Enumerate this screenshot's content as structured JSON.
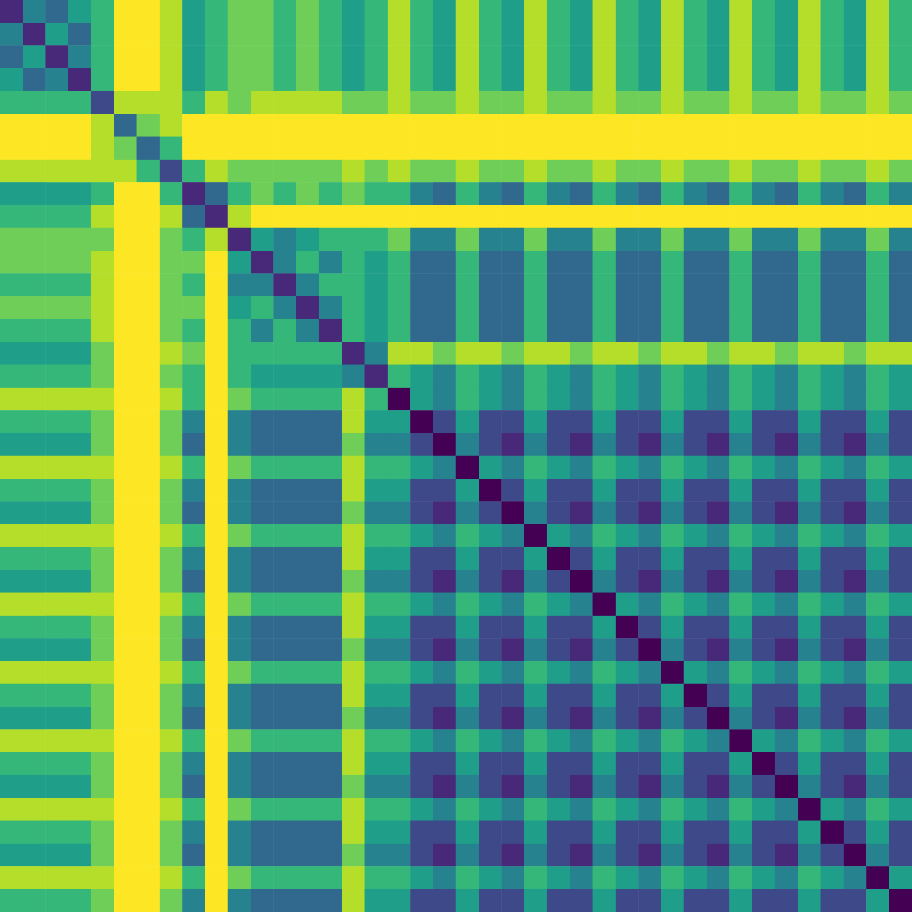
{
  "chart_data": {
    "type": "heatmap",
    "tick_labels": false,
    "color_range": [
      0,
      9
    ],
    "cells": [
      [
        1,
        4,
        3,
        5,
        6,
        9,
        9,
        8,
        5,
        6,
        7,
        7,
        6,
        7,
        6,
        5,
        6,
        8,
        6,
        5,
        8,
        6,
        5,
        8,
        6,
        5,
        8,
        6,
        5,
        8,
        6,
        5,
        8,
        6,
        5,
        8,
        6,
        5,
        8,
        6
      ],
      [
        4,
        1,
        5,
        3,
        6,
        9,
        9,
        8,
        5,
        6,
        7,
        7,
        6,
        7,
        6,
        5,
        6,
        8,
        6,
        5,
        8,
        6,
        5,
        8,
        6,
        5,
        8,
        6,
        5,
        8,
        6,
        5,
        8,
        6,
        5,
        8,
        6,
        5,
        8,
        6
      ],
      [
        3,
        5,
        1,
        4,
        6,
        9,
        9,
        8,
        5,
        6,
        7,
        7,
        6,
        7,
        6,
        5,
        6,
        8,
        6,
        5,
        8,
        6,
        5,
        8,
        6,
        5,
        8,
        6,
        5,
        8,
        6,
        5,
        8,
        6,
        5,
        8,
        6,
        5,
        8,
        6
      ],
      [
        5,
        3,
        4,
        1,
        6,
        9,
        9,
        8,
        5,
        6,
        7,
        7,
        6,
        7,
        6,
        5,
        6,
        8,
        6,
        5,
        8,
        6,
        5,
        8,
        6,
        5,
        8,
        6,
        5,
        8,
        6,
        5,
        8,
        6,
        5,
        8,
        6,
        5,
        8,
        6
      ],
      [
        6,
        6,
        6,
        6,
        2,
        8,
        8,
        8,
        6,
        8,
        7,
        8,
        8,
        8,
        8,
        7,
        7,
        8,
        7,
        7,
        8,
        7,
        7,
        8,
        7,
        7,
        8,
        7,
        7,
        8,
        7,
        7,
        8,
        7,
        7,
        8,
        7,
        7,
        8,
        7
      ],
      [
        9,
        9,
        9,
        9,
        8,
        3,
        7,
        8,
        9,
        9,
        9,
        9,
        9,
        9,
        9,
        9,
        9,
        9,
        9,
        9,
        9,
        9,
        9,
        9,
        9,
        9,
        9,
        9,
        9,
        9,
        9,
        9,
        9,
        9,
        9,
        9,
        9,
        9,
        9,
        9
      ],
      [
        9,
        9,
        9,
        9,
        8,
        7,
        3,
        6,
        9,
        9,
        9,
        9,
        9,
        9,
        9,
        9,
        9,
        9,
        9,
        9,
        9,
        9,
        9,
        9,
        9,
        9,
        9,
        9,
        9,
        9,
        9,
        9,
        9,
        9,
        9,
        9,
        9,
        9,
        9,
        9
      ],
      [
        8,
        8,
        8,
        8,
        8,
        8,
        6,
        2,
        6,
        8,
        7,
        7,
        7,
        7,
        7,
        8,
        7,
        8,
        7,
        7,
        8,
        7,
        7,
        8,
        7,
        7,
        8,
        7,
        7,
        8,
        7,
        7,
        8,
        7,
        7,
        8,
        7,
        7,
        8,
        7
      ],
      [
        5,
        5,
        5,
        5,
        6,
        9,
        9,
        6,
        1,
        3,
        6,
        7,
        6,
        7,
        6,
        7,
        6,
        6,
        4,
        3,
        6,
        4,
        3,
        6,
        4,
        3,
        6,
        4,
        3,
        6,
        4,
        3,
        6,
        4,
        3,
        6,
        4,
        3,
        6,
        4
      ],
      [
        6,
        6,
        6,
        6,
        8,
        9,
        9,
        8,
        3,
        1,
        8,
        9,
        9,
        9,
        9,
        9,
        9,
        9,
        9,
        9,
        9,
        9,
        9,
        9,
        9,
        9,
        9,
        9,
        9,
        9,
        9,
        9,
        9,
        9,
        9,
        9,
        9,
        9,
        9,
        9
      ],
      [
        7,
        7,
        7,
        7,
        7,
        9,
        9,
        7,
        6,
        8,
        1,
        5,
        4,
        5,
        6,
        6,
        6,
        7,
        4,
        4,
        7,
        4,
        4,
        7,
        4,
        4,
        7,
        4,
        4,
        7,
        4,
        4,
        7,
        4,
        4,
        7,
        4,
        4,
        7,
        4
      ],
      [
        7,
        7,
        7,
        7,
        8,
        9,
        9,
        7,
        7,
        9,
        5,
        1,
        4,
        6,
        4,
        6,
        5,
        6,
        3,
        3,
        6,
        3,
        3,
        6,
        3,
        3,
        6,
        3,
        3,
        6,
        3,
        3,
        6,
        3,
        3,
        6,
        3,
        3,
        6,
        3
      ],
      [
        6,
        6,
        6,
        6,
        8,
        9,
        9,
        7,
        6,
        9,
        4,
        4,
        1,
        4,
        6,
        6,
        5,
        6,
        3,
        3,
        6,
        3,
        3,
        6,
        3,
        3,
        6,
        3,
        3,
        6,
        3,
        3,
        6,
        3,
        3,
        6,
        3,
        3,
        6,
        3
      ],
      [
        7,
        7,
        7,
        7,
        8,
        9,
        9,
        7,
        7,
        9,
        5,
        6,
        4,
        1,
        4,
        6,
        5,
        6,
        3,
        3,
        6,
        3,
        3,
        6,
        3,
        3,
        6,
        3,
        3,
        6,
        3,
        3,
        6,
        3,
        3,
        6,
        3,
        3,
        6,
        3
      ],
      [
        6,
        6,
        6,
        6,
        8,
        9,
        9,
        7,
        6,
        9,
        6,
        4,
        6,
        4,
        1,
        6,
        5,
        6,
        3,
        3,
        6,
        3,
        3,
        6,
        3,
        3,
        6,
        3,
        3,
        6,
        3,
        3,
        6,
        3,
        3,
        6,
        3,
        3,
        6,
        3
      ],
      [
        5,
        5,
        5,
        5,
        7,
        9,
        9,
        8,
        7,
        9,
        6,
        6,
        6,
        6,
        6,
        1,
        4,
        8,
        8,
        7,
        8,
        8,
        7,
        8,
        8,
        7,
        8,
        8,
        7,
        8,
        8,
        7,
        8,
        8,
        7,
        8,
        8,
        7,
        8,
        8
      ],
      [
        6,
        6,
        6,
        6,
        7,
        9,
        9,
        7,
        6,
        9,
        6,
        5,
        5,
        5,
        5,
        4,
        1,
        6,
        5,
        4,
        6,
        5,
        4,
        6,
        5,
        4,
        6,
        5,
        4,
        6,
        5,
        4,
        6,
        5,
        4,
        6,
        5,
        4,
        6,
        5
      ],
      [
        8,
        8,
        8,
        8,
        8,
        9,
        9,
        8,
        6,
        9,
        7,
        6,
        6,
        6,
        6,
        8,
        6,
        0,
        5,
        4,
        6,
        5,
        4,
        6,
        5,
        4,
        6,
        5,
        4,
        6,
        5,
        4,
        6,
        5,
        4,
        6,
        5,
        4,
        6,
        5
      ],
      [
        6,
        6,
        6,
        6,
        7,
        9,
        9,
        7,
        4,
        9,
        4,
        3,
        3,
        3,
        3,
        8,
        5,
        5,
        0,
        2,
        5,
        2,
        2,
        5,
        2,
        2,
        5,
        2,
        2,
        5,
        2,
        2,
        5,
        2,
        2,
        5,
        2,
        2,
        5,
        2
      ],
      [
        5,
        5,
        5,
        5,
        7,
        9,
        9,
        7,
        3,
        9,
        4,
        3,
        3,
        3,
        3,
        7,
        4,
        4,
        2,
        0,
        4,
        2,
        1,
        4,
        2,
        1,
        4,
        2,
        1,
        4,
        2,
        1,
        4,
        2,
        1,
        4,
        2,
        1,
        4,
        2
      ],
      [
        8,
        8,
        8,
        8,
        8,
        9,
        9,
        8,
        6,
        9,
        7,
        6,
        6,
        6,
        6,
        8,
        6,
        6,
        5,
        4,
        0,
        5,
        4,
        6,
        5,
        4,
        6,
        5,
        4,
        6,
        5,
        4,
        6,
        5,
        4,
        6,
        5,
        4,
        6,
        5
      ],
      [
        6,
        6,
        6,
        6,
        7,
        9,
        9,
        7,
        4,
        9,
        4,
        3,
        3,
        3,
        3,
        8,
        5,
        5,
        2,
        2,
        5,
        0,
        2,
        5,
        2,
        2,
        5,
        2,
        2,
        5,
        2,
        2,
        5,
        2,
        2,
        5,
        2,
        2,
        5,
        2
      ],
      [
        5,
        5,
        5,
        5,
        7,
        9,
        9,
        7,
        3,
        9,
        4,
        3,
        3,
        3,
        3,
        7,
        4,
        4,
        2,
        1,
        4,
        2,
        0,
        4,
        2,
        1,
        4,
        2,
        1,
        4,
        2,
        1,
        4,
        2,
        1,
        4,
        2,
        1,
        4,
        2
      ],
      [
        8,
        8,
        8,
        8,
        8,
        9,
        9,
        8,
        6,
        9,
        7,
        6,
        6,
        6,
        6,
        8,
        6,
        6,
        5,
        4,
        6,
        5,
        4,
        0,
        5,
        4,
        6,
        5,
        4,
        6,
        5,
        4,
        6,
        5,
        4,
        6,
        5,
        4,
        6,
        5
      ],
      [
        6,
        6,
        6,
        6,
        7,
        9,
        9,
        7,
        4,
        9,
        4,
        3,
        3,
        3,
        3,
        8,
        5,
        5,
        2,
        2,
        5,
        2,
        2,
        5,
        0,
        2,
        5,
        2,
        2,
        5,
        2,
        2,
        5,
        2,
        2,
        5,
        2,
        2,
        5,
        2
      ],
      [
        5,
        5,
        5,
        5,
        7,
        9,
        9,
        7,
        3,
        9,
        4,
        3,
        3,
        3,
        3,
        7,
        4,
        4,
        2,
        1,
        4,
        2,
        1,
        4,
        2,
        0,
        4,
        2,
        1,
        4,
        2,
        1,
        4,
        2,
        1,
        4,
        2,
        1,
        4,
        2
      ],
      [
        8,
        8,
        8,
        8,
        8,
        9,
        9,
        8,
        6,
        9,
        7,
        6,
        6,
        6,
        6,
        8,
        6,
        6,
        5,
        4,
        6,
        5,
        4,
        6,
        5,
        4,
        0,
        5,
        4,
        6,
        5,
        4,
        6,
        5,
        4,
        6,
        5,
        4,
        6,
        5
      ],
      [
        6,
        6,
        6,
        6,
        7,
        9,
        9,
        7,
        4,
        9,
        4,
        3,
        3,
        3,
        3,
        8,
        5,
        5,
        2,
        2,
        5,
        2,
        2,
        5,
        2,
        2,
        5,
        0,
        2,
        5,
        2,
        2,
        5,
        2,
        2,
        5,
        2,
        2,
        5,
        2
      ],
      [
        5,
        5,
        5,
        5,
        7,
        9,
        9,
        7,
        3,
        9,
        4,
        3,
        3,
        3,
        3,
        7,
        4,
        4,
        2,
        1,
        4,
        2,
        1,
        4,
        2,
        1,
        4,
        2,
        0,
        4,
        2,
        1,
        4,
        2,
        1,
        4,
        2,
        1,
        4,
        2
      ],
      [
        8,
        8,
        8,
        8,
        8,
        9,
        9,
        8,
        6,
        9,
        7,
        6,
        6,
        6,
        6,
        8,
        6,
        6,
        5,
        4,
        6,
        5,
        4,
        6,
        5,
        4,
        6,
        5,
        4,
        0,
        5,
        4,
        6,
        5,
        4,
        6,
        5,
        4,
        6,
        5
      ],
      [
        6,
        6,
        6,
        6,
        7,
        9,
        9,
        7,
        4,
        9,
        4,
        3,
        3,
        3,
        3,
        8,
        5,
        5,
        2,
        2,
        5,
        2,
        2,
        5,
        2,
        2,
        5,
        2,
        2,
        5,
        0,
        2,
        5,
        2,
        2,
        5,
        2,
        2,
        5,
        2
      ],
      [
        5,
        5,
        5,
        5,
        7,
        9,
        9,
        7,
        3,
        9,
        4,
        3,
        3,
        3,
        3,
        7,
        4,
        4,
        2,
        1,
        4,
        2,
        1,
        4,
        2,
        1,
        4,
        2,
        1,
        4,
        2,
        0,
        4,
        2,
        1,
        4,
        2,
        1,
        4,
        2
      ],
      [
        8,
        8,
        8,
        8,
        8,
        9,
        9,
        8,
        6,
        9,
        7,
        6,
        6,
        6,
        6,
        8,
        6,
        6,
        5,
        4,
        6,
        5,
        4,
        6,
        5,
        4,
        6,
        5,
        4,
        6,
        5,
        4,
        0,
        5,
        4,
        6,
        5,
        4,
        6,
        5
      ],
      [
        6,
        6,
        6,
        6,
        7,
        9,
        9,
        7,
        4,
        9,
        4,
        3,
        3,
        3,
        3,
        8,
        5,
        5,
        2,
        2,
        5,
        2,
        2,
        5,
        2,
        2,
        5,
        2,
        2,
        5,
        2,
        2,
        5,
        0,
        2,
        5,
        2,
        2,
        5,
        2
      ],
      [
        5,
        5,
        5,
        5,
        7,
        9,
        9,
        7,
        3,
        9,
        4,
        3,
        3,
        3,
        3,
        7,
        4,
        4,
        2,
        1,
        4,
        2,
        1,
        4,
        2,
        1,
        4,
        2,
        1,
        4,
        2,
        1,
        4,
        2,
        0,
        4,
        2,
        1,
        4,
        2
      ],
      [
        8,
        8,
        8,
        8,
        8,
        9,
        9,
        8,
        6,
        9,
        7,
        6,
        6,
        6,
        6,
        8,
        6,
        6,
        5,
        4,
        6,
        5,
        4,
        6,
        5,
        4,
        6,
        5,
        4,
        6,
        5,
        4,
        6,
        5,
        4,
        0,
        5,
        4,
        6,
        5
      ],
      [
        6,
        6,
        6,
        6,
        7,
        9,
        9,
        7,
        4,
        9,
        4,
        3,
        3,
        3,
        3,
        8,
        5,
        5,
        2,
        2,
        5,
        2,
        2,
        5,
        2,
        2,
        5,
        2,
        2,
        5,
        2,
        2,
        5,
        2,
        2,
        5,
        0,
        2,
        5,
        2
      ],
      [
        5,
        5,
        5,
        5,
        7,
        9,
        9,
        7,
        3,
        9,
        4,
        3,
        3,
        3,
        3,
        7,
        4,
        4,
        2,
        1,
        4,
        2,
        1,
        4,
        2,
        1,
        4,
        2,
        1,
        4,
        2,
        1,
        4,
        2,
        1,
        4,
        2,
        0,
        4,
        2
      ],
      [
        8,
        8,
        8,
        8,
        8,
        9,
        9,
        8,
        6,
        9,
        7,
        6,
        6,
        6,
        6,
        8,
        6,
        6,
        5,
        4,
        6,
        5,
        4,
        6,
        5,
        4,
        6,
        5,
        4,
        6,
        5,
        4,
        6,
        5,
        4,
        6,
        5,
        4,
        0,
        5
      ],
      [
        6,
        6,
        6,
        6,
        7,
        9,
        9,
        7,
        4,
        9,
        4,
        3,
        3,
        3,
        3,
        8,
        5,
        5,
        2,
        2,
        5,
        2,
        2,
        5,
        2,
        2,
        5,
        2,
        2,
        5,
        2,
        2,
        5,
        2,
        2,
        5,
        2,
        2,
        5,
        0
      ]
    ]
  }
}
